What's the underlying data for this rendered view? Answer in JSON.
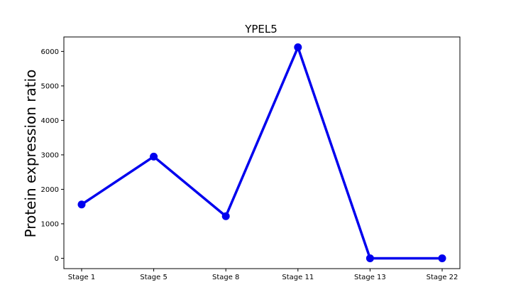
{
  "chart_data": {
    "type": "line",
    "title": "YPEL5",
    "xlabel": "",
    "ylabel": "Protein expression ratio",
    "categories": [
      "Stage 1",
      "Stage 5",
      "Stage 8",
      "Stage 11",
      "Stage 13",
      "Stage 22"
    ],
    "series": [
      {
        "values": [
          1560,
          2950,
          1220,
          6120,
          0,
          0
        ],
        "color": "#0000ee"
      }
    ],
    "ylim": [
      -300,
      6420
    ],
    "yticks": [
      0,
      1000,
      2000,
      3000,
      4000,
      5000,
      6000
    ],
    "ytick_labels": [
      "0",
      "1000",
      "2000",
      "3000",
      "4000",
      "5000",
      "6000"
    ],
    "grid": false,
    "legend": false
  }
}
